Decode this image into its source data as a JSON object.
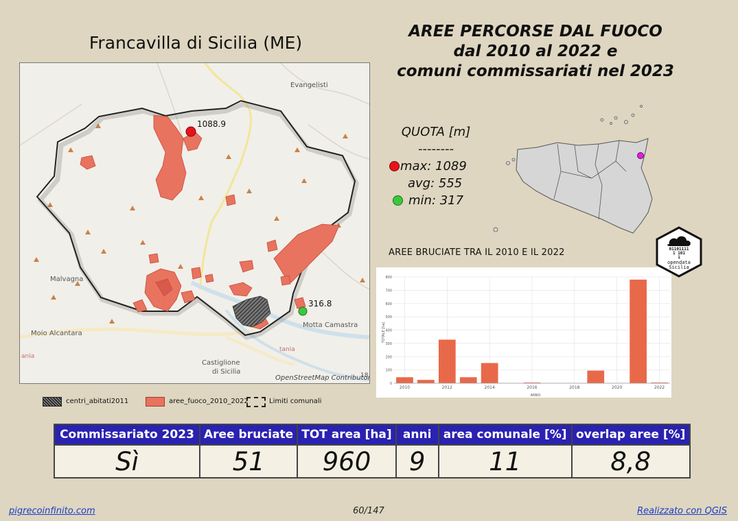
{
  "municipality_title": "Francavilla di Sicilia (ME)",
  "main_title": [
    "AREE PERCORSE DAL FUOCO",
    "dal 2010 al 2022 e",
    "comuni commissariati nel 2023"
  ],
  "quota": {
    "title": "QUOTA [m]",
    "sep": "--------",
    "max": "max: 1089",
    "avg": "avg: 555",
    "min": "min: 317",
    "max_color": "#e8131a",
    "min_color": "#3cc83c"
  },
  "map": {
    "labels": {
      "evangelisti": "Evangelisti",
      "malvagna": "Malvagna",
      "moio": "Moio Alcantara",
      "motta": "Motta Camastra",
      "castiglione": "Castiglione",
      "di_sicilia": "di Sicilia",
      "attribution": "OpenStreetMap Contributor",
      "peak_high": "1088.9",
      "peak_low": "316.8",
      "edge_left": "ania",
      "edge_right": "tania",
      "edge_corner": "18"
    },
    "fire_color": "#e8735f",
    "boundary_color": "#222222"
  },
  "legend": {
    "centri": "centri_abitati2011",
    "aree": "aree_fuoco_2010_2022",
    "limiti": "Limiti comunali"
  },
  "chart_data": {
    "type": "bar",
    "title": "AREE BRUCIATE TRA IL 2010 E IL 2022",
    "ylabel": "TOTALE [ha]",
    "xlabel": "ANNO",
    "x": [
      2010,
      2011,
      2012,
      2013,
      2014,
      2015,
      2016,
      2017,
      2018,
      2019,
      2020,
      2021,
      2022
    ],
    "values": [
      45,
      25,
      328,
      45,
      152,
      0,
      5,
      0,
      0,
      95,
      0,
      780,
      5
    ],
    "ylim": [
      0,
      800
    ],
    "yticks": [
      0,
      100,
      200,
      300,
      400,
      500,
      600,
      700,
      800
    ],
    "xticks": [
      2010,
      2012,
      2014,
      2016,
      2018,
      2020,
      2022
    ],
    "bar_color": "#e8694a",
    "grid": true
  },
  "stats": {
    "headers": [
      "Commissariato 2023",
      "Aree bruciate",
      "TOT area [ha]",
      "anni",
      "area comunale [%]",
      "overlap aree [%]"
    ],
    "values": [
      "Sì",
      "51",
      "960",
      "9",
      "11",
      "8,8"
    ]
  },
  "footer": {
    "left": "pigrecoinfinito.com",
    "page": "60/147",
    "right": "Realizzato con QGIS"
  },
  "logo": {
    "bits": [
      "10110010",
      "01101111",
      "1 101",
      "1"
    ],
    "line1": "opendata",
    "line2": "Sicilia"
  }
}
